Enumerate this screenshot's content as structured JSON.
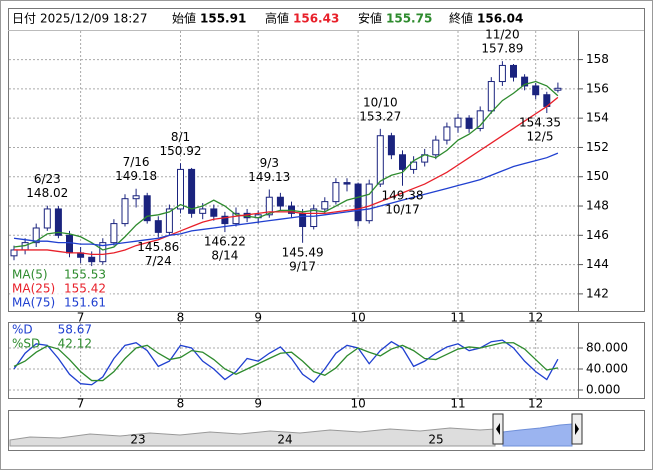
{
  "header": {
    "date_label": "日付",
    "datetime": "2025/12/09 18:27",
    "open_label": "始値",
    "open": 155.91,
    "high_label": "高値",
    "high": 156.43,
    "low_label": "安値",
    "low": 155.75,
    "close_label": "終値",
    "close": 156.04
  },
  "chart_data": [
    {
      "type": "candlestick",
      "categories": [
        null,
        null,
        null,
        null,
        null,
        null,
        "7",
        null,
        null,
        null,
        null,
        null,
        null,
        null,
        null,
        "8",
        null,
        null,
        null,
        null,
        null,
        null,
        "9",
        null,
        null,
        null,
        null,
        null,
        null,
        null,
        null,
        "10",
        null,
        null,
        null,
        null,
        null,
        null,
        null,
        null,
        "11",
        null,
        null,
        null,
        null,
        null,
        null,
        "12",
        null,
        null
      ],
      "open": [
        144.6,
        145.0,
        145.5,
        146.5,
        147.8,
        146.0,
        144.8,
        144.5,
        144.2,
        145.5,
        146.8,
        148.5,
        148.7,
        147.0,
        146.2,
        147.8,
        150.5,
        147.5,
        147.8,
        147.3,
        146.8,
        147.5,
        147.2,
        147.4,
        148.6,
        148.0,
        147.5,
        146.6,
        147.8,
        148.3,
        149.6,
        149.5,
        147.0,
        149.5,
        152.8,
        151.5,
        150.5,
        151.0,
        151.5,
        152.5,
        153.4,
        154.0,
        153.3,
        154.5,
        156.5,
        157.6,
        156.8,
        156.2,
        155.6,
        155.91
      ],
      "high": [
        145.3,
        145.8,
        146.8,
        148.02,
        148.0,
        146.3,
        145.2,
        144.9,
        145.8,
        147.1,
        148.8,
        149.18,
        148.9,
        147.3,
        148.1,
        150.92,
        150.6,
        148.2,
        148.1,
        147.6,
        147.9,
        147.8,
        147.7,
        149.13,
        148.9,
        148.3,
        147.8,
        148.1,
        148.6,
        149.9,
        149.9,
        149.6,
        149.8,
        153.27,
        153.0,
        151.8,
        151.4,
        151.9,
        152.8,
        153.7,
        154.3,
        154.2,
        154.8,
        156.8,
        157.89,
        157.7,
        157.0,
        156.4,
        155.8,
        156.43
      ],
      "low": [
        144.3,
        144.7,
        145.2,
        146.3,
        145.8,
        144.5,
        144.1,
        143.9,
        144.0,
        145.3,
        146.6,
        147.9,
        146.8,
        145.86,
        146.0,
        147.5,
        147.2,
        147.1,
        147.0,
        146.22,
        146.6,
        146.9,
        146.8,
        147.2,
        147.7,
        147.2,
        145.49,
        146.4,
        147.5,
        148.1,
        149.0,
        146.6,
        146.8,
        149.3,
        151.2,
        149.38,
        150.2,
        150.7,
        151.2,
        152.2,
        153.0,
        153.0,
        153.1,
        154.3,
        156.2,
        156.5,
        155.9,
        155.3,
        154.35,
        155.75
      ],
      "close": [
        145.0,
        145.5,
        146.5,
        147.8,
        146.0,
        144.8,
        144.5,
        144.2,
        145.5,
        146.8,
        148.5,
        148.7,
        147.0,
        146.2,
        147.8,
        150.5,
        147.5,
        147.8,
        147.3,
        146.8,
        147.5,
        147.2,
        147.4,
        148.6,
        148.0,
        147.5,
        146.6,
        147.8,
        148.3,
        149.6,
        149.5,
        147.0,
        149.5,
        152.8,
        151.5,
        150.5,
        151.0,
        151.5,
        152.5,
        153.4,
        154.0,
        153.3,
        154.5,
        156.5,
        157.6,
        156.8,
        156.2,
        155.6,
        154.8,
        156.04
      ],
      "up_color": "#ffffff",
      "down_color": "#1a237e",
      "edge_color": "#1a237e",
      "series": [
        {
          "name": "MA(5)",
          "color": "#2e8b2e",
          "last": 155.53,
          "values": [
            145.2,
            145.3,
            145.6,
            146.1,
            146.2,
            146.1,
            145.9,
            145.5,
            145.0,
            145.2,
            145.9,
            146.7,
            147.3,
            147.4,
            147.6,
            148.1,
            147.8,
            148.0,
            148.4,
            148.0,
            147.4,
            147.3,
            147.2,
            147.5,
            147.7,
            147.7,
            147.6,
            147.7,
            147.6,
            148.0,
            148.4,
            148.6,
            148.8,
            149.7,
            150.1,
            150.3,
            151.1,
            151.5,
            151.3,
            151.8,
            152.5,
            152.9,
            153.5,
            154.4,
            155.2,
            155.7,
            156.3,
            156.5,
            156.2,
            155.53
          ]
        },
        {
          "name": "MA(25)",
          "color": "#e8202a",
          "last": 155.42,
          "values": [
            145.0,
            145.0,
            145.0,
            145.0,
            144.9,
            144.8,
            144.8,
            144.7,
            144.7,
            144.8,
            145.0,
            145.3,
            145.5,
            145.7,
            146.0,
            146.3,
            146.6,
            146.9,
            147.1,
            147.2,
            147.3,
            147.4,
            147.5,
            147.6,
            147.6,
            147.6,
            147.5,
            147.5,
            147.5,
            147.6,
            147.7,
            147.8,
            148.0,
            148.3,
            148.6,
            148.9,
            149.2,
            149.5,
            149.9,
            150.3,
            150.8,
            151.3,
            151.8,
            152.3,
            152.8,
            153.3,
            153.8,
            154.3,
            154.8,
            155.42
          ]
        },
        {
          "name": "MA(75)",
          "color": "#2040d0",
          "last": 151.61,
          "values": [
            145.8,
            145.7,
            145.6,
            145.6,
            145.5,
            145.5,
            145.4,
            145.4,
            145.3,
            145.4,
            145.5,
            145.6,
            145.7,
            145.8,
            146.0,
            146.1,
            146.3,
            146.4,
            146.5,
            146.6,
            146.7,
            146.8,
            146.9,
            147.0,
            147.1,
            147.2,
            147.3,
            147.3,
            147.4,
            147.5,
            147.6,
            147.7,
            147.8,
            148.0,
            148.2,
            148.4,
            148.6,
            148.8,
            149.0,
            149.2,
            149.4,
            149.6,
            149.8,
            150.1,
            150.4,
            150.7,
            150.9,
            151.1,
            151.3,
            151.61
          ]
        }
      ],
      "annotations": [
        {
          "label": "6/23",
          "value": 148.02
        },
        {
          "label": "7/16",
          "value": 149.18
        },
        {
          "label": "7/24",
          "value": 145.86
        },
        {
          "label": "8/1",
          "value": 150.92
        },
        {
          "label": "8/14",
          "value": 146.22
        },
        {
          "label": "9/3",
          "value": 149.13
        },
        {
          "label": "9/17",
          "value": 145.49
        },
        {
          "label": "10/10",
          "value": 153.27
        },
        {
          "label": "10/17",
          "value": 149.38
        },
        {
          "label": "11/20",
          "value": 157.89
        },
        {
          "label": "12/5",
          "value": 154.35
        }
      ],
      "ylim": [
        140.9,
        159.2
      ],
      "yticks": [
        142,
        144,
        146,
        148,
        150,
        152,
        154,
        156,
        158
      ],
      "grid": true
    },
    {
      "type": "line",
      "series": [
        {
          "name": "%D",
          "color": "#2040d0",
          "last": 58.67,
          "values": [
            40,
            70,
            88,
            85,
            60,
            30,
            12,
            10,
            25,
            60,
            85,
            90,
            75,
            45,
            55,
            85,
            80,
            55,
            40,
            20,
            35,
            60,
            55,
            70,
            82,
            60,
            30,
            15,
            40,
            70,
            85,
            80,
            50,
            75,
            92,
            80,
            45,
            55,
            70,
            82,
            88,
            75,
            80,
            92,
            95,
            80,
            55,
            35,
            20,
            58.67
          ]
        },
        {
          "name": "%SD",
          "color": "#2e8b2e",
          "last": 42.12,
          "values": [
            45,
            55,
            72,
            84,
            78,
            58,
            35,
            18,
            18,
            35,
            60,
            80,
            85,
            70,
            58,
            62,
            75,
            72,
            58,
            40,
            30,
            40,
            50,
            60,
            70,
            72,
            55,
            35,
            28,
            42,
            65,
            80,
            72,
            65,
            78,
            85,
            75,
            60,
            58,
            68,
            78,
            82,
            80,
            85,
            90,
            90,
            78,
            58,
            38,
            42.12
          ]
        }
      ],
      "ylim": [
        0,
        100
      ],
      "yticks": [
        {
          "value": 0,
          "label": "0.000"
        },
        {
          "value": 40,
          "label": "40.000"
        },
        {
          "value": 80,
          "label": "80.000"
        }
      ],
      "grid": true
    }
  ],
  "navigator": {
    "labels": [
      "23",
      "24",
      "25"
    ]
  }
}
